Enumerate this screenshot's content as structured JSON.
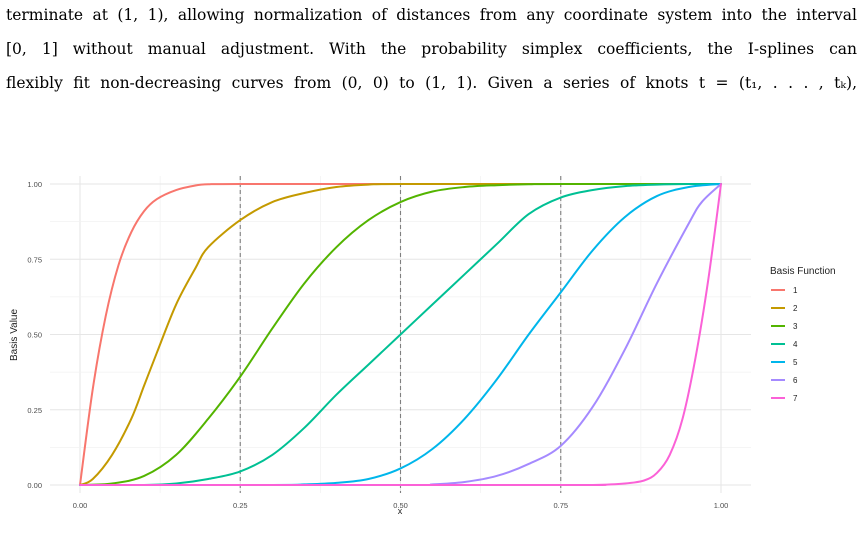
{
  "paragraph": {
    "lines": [
      "terminate at (1, 1), allowing normalization of distances from any coordinate system into the interval",
      "[0, 1] without manual adjustment. With the probability simplex coefficients, the I-splines can",
      "flexibly fit non-decreasing curves from (0, 0) to (1, 1). Given a series of knots t = (t₁, . . . , tₖ),"
    ]
  },
  "chart_data": {
    "type": "line",
    "title": "",
    "xlabel": "x",
    "ylabel": "Basis Value",
    "xlim": [
      0,
      1
    ],
    "ylim": [
      0,
      1
    ],
    "x_ticks": [
      "0.00",
      "0.25",
      "0.50",
      "0.75",
      "1.00"
    ],
    "y_ticks": [
      "0.00",
      "0.25",
      "0.50",
      "0.75",
      "1.00"
    ],
    "grid": true,
    "knots": [
      0.25,
      0.5,
      0.75
    ],
    "legend": {
      "title": "Basis Function",
      "placement": "right"
    },
    "series": [
      {
        "name": "1",
        "color": "#F8766D",
        "x": [
          0,
          0.02,
          0.04,
          0.06,
          0.08,
          0.1,
          0.12,
          0.15,
          0.18,
          0.2,
          0.25,
          0.5,
          0.75,
          1.0
        ],
        "y": [
          0,
          0.32,
          0.56,
          0.73,
          0.84,
          0.91,
          0.95,
          0.98,
          0.995,
          0.999,
          1.0,
          1.0,
          1.0,
          1.0
        ]
      },
      {
        "name": "2",
        "color": "#C49A00",
        "x": [
          0,
          0.02,
          0.05,
          0.08,
          0.1,
          0.12,
          0.15,
          0.18,
          0.2,
          0.25,
          0.3,
          0.35,
          0.4,
          0.45,
          0.5,
          0.75,
          1.0
        ],
        "y": [
          0,
          0.02,
          0.1,
          0.22,
          0.33,
          0.44,
          0.6,
          0.72,
          0.79,
          0.88,
          0.94,
          0.97,
          0.99,
          0.998,
          1.0,
          1.0,
          1.0
        ]
      },
      {
        "name": "3",
        "color": "#53B400",
        "x": [
          0,
          0.05,
          0.1,
          0.15,
          0.2,
          0.25,
          0.3,
          0.35,
          0.4,
          0.45,
          0.5,
          0.55,
          0.6,
          0.65,
          0.7,
          0.75,
          1.0
        ],
        "y": [
          0,
          0.005,
          0.03,
          0.1,
          0.22,
          0.36,
          0.52,
          0.67,
          0.79,
          0.88,
          0.94,
          0.975,
          0.99,
          0.996,
          0.999,
          1.0,
          1.0
        ]
      },
      {
        "name": "4",
        "color": "#00C094",
        "x": [
          0,
          0.1,
          0.15,
          0.2,
          0.25,
          0.3,
          0.35,
          0.4,
          0.45,
          0.5,
          0.55,
          0.6,
          0.65,
          0.7,
          0.75,
          0.8,
          0.85,
          0.9,
          0.95,
          1.0
        ],
        "y": [
          0,
          0.0,
          0.005,
          0.02,
          0.045,
          0.1,
          0.19,
          0.3,
          0.4,
          0.5,
          0.6,
          0.7,
          0.8,
          0.9,
          0.955,
          0.98,
          0.993,
          0.998,
          1.0,
          1.0
        ]
      },
      {
        "name": "5",
        "color": "#00B6EB",
        "x": [
          0,
          0.3,
          0.35,
          0.4,
          0.45,
          0.5,
          0.55,
          0.6,
          0.65,
          0.7,
          0.75,
          0.8,
          0.85,
          0.9,
          0.95,
          1.0
        ],
        "y": [
          0,
          0.0,
          0.002,
          0.007,
          0.02,
          0.055,
          0.12,
          0.22,
          0.35,
          0.5,
          0.64,
          0.78,
          0.89,
          0.96,
          0.99,
          1.0
        ]
      },
      {
        "name": "6",
        "color": "#A58AFF",
        "x": [
          0,
          0.5,
          0.55,
          0.6,
          0.65,
          0.7,
          0.75,
          0.8,
          0.85,
          0.9,
          0.95,
          0.97,
          1.0
        ],
        "y": [
          0,
          0.0,
          0.002,
          0.01,
          0.03,
          0.07,
          0.13,
          0.26,
          0.45,
          0.67,
          0.87,
          0.94,
          1.0
        ]
      },
      {
        "name": "7",
        "color": "#FB61D7",
        "x": [
          0,
          0.75,
          0.8,
          0.85,
          0.88,
          0.9,
          0.92,
          0.94,
          0.96,
          0.98,
          1.0
        ],
        "y": [
          0,
          0.0,
          0.0,
          0.005,
          0.015,
          0.04,
          0.1,
          0.22,
          0.42,
          0.68,
          1.0
        ]
      }
    ]
  }
}
